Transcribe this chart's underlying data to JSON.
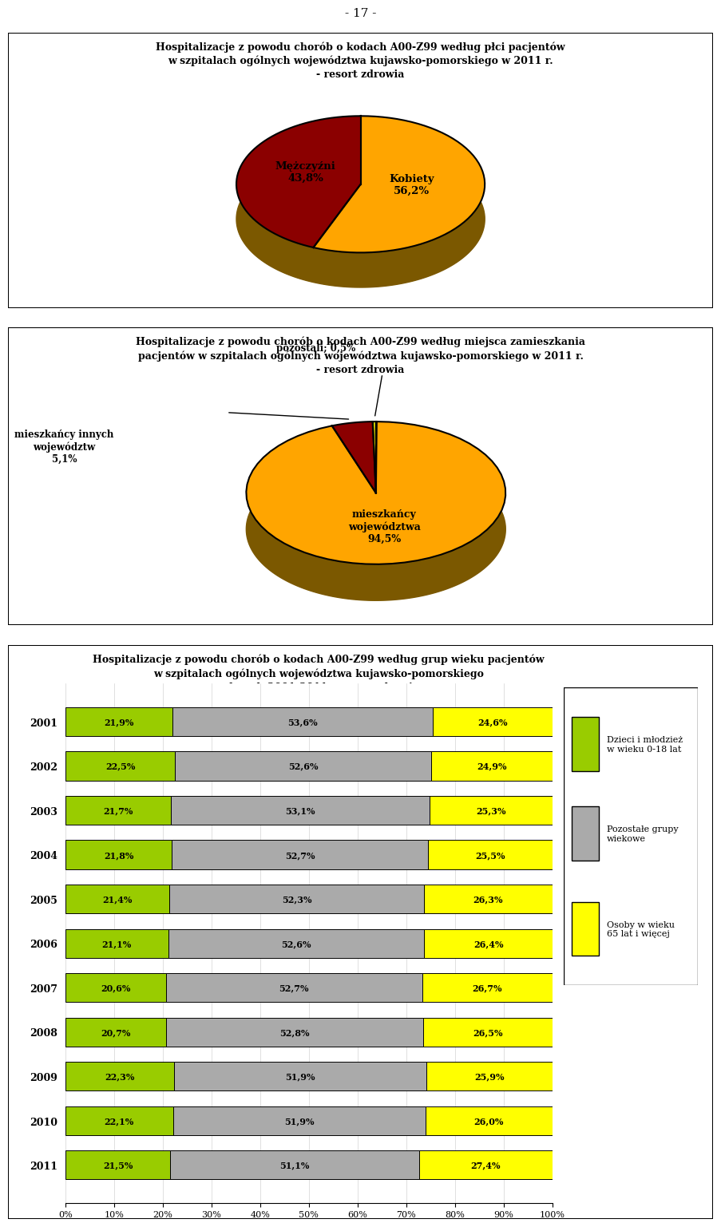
{
  "page_number": "- 17 -",
  "chart1": {
    "title_line1": "Hospitalizacje z powodu chorób o kodach A00-Z99 według płci pacjentów",
    "title_line2": "w szpitalach ogólnych województwa kujawsko-pomorskiego w 2011 r.",
    "title_line3": "- resort zdrowia",
    "slices": [
      56.2,
      43.8
    ],
    "labels": [
      "Kobiety\n56,2%",
      "Mężczyźni\n43,8%"
    ],
    "colors": [
      "#FFA500",
      "#8B0000"
    ],
    "shadow_color": "#7B5800",
    "startangle": 90
  },
  "chart2": {
    "title_line1": "Hospitalizacje z powodu chorób o kodach A00-Z99 według miejsca zamieszkania",
    "title_line2": "pacjentów w szpitalach ogólnych województwa kujawsko-pomorskiego w 2011 r.",
    "title_line3": "- resort zdrowia",
    "slices": [
      94.5,
      5.1,
      0.5
    ],
    "labels": [
      "mieszkańcy\nwojewództwa\n94,5%",
      "mieszkańcy innych\nwojewództw\n5,1%",
      "pozostali; 0,5%"
    ],
    "colors": [
      "#FFA500",
      "#8B0000",
      "#CCCC00"
    ],
    "shadow_color": "#7B5800",
    "startangle": 90
  },
  "chart3": {
    "title_line1": "Hospitalizacje z powodu chorób o kodach A00-Z99 według grup wieku pacjentów",
    "title_line2": "w szpitalach ogólnych województwa kujawsko-pomorskiego",
    "title_line3": "w latach 2001-2011 - resort zdrowia",
    "years": [
      2001,
      2002,
      2003,
      2004,
      2005,
      2006,
      2007,
      2008,
      2009,
      2010,
      2011
    ],
    "green_vals": [
      21.9,
      22.5,
      21.7,
      21.8,
      21.4,
      21.1,
      20.6,
      20.7,
      22.3,
      22.1,
      21.5
    ],
    "gray_vals": [
      53.6,
      52.6,
      53.1,
      52.7,
      52.3,
      52.6,
      52.7,
      52.8,
      51.9,
      51.9,
      51.1
    ],
    "yellow_vals": [
      24.6,
      24.9,
      25.3,
      25.5,
      26.3,
      26.4,
      26.7,
      26.5,
      25.9,
      26.0,
      27.4
    ],
    "green_color": "#99CC00",
    "gray_color": "#AAAAAA",
    "yellow_color": "#FFFF00",
    "legend_labels": [
      "Dzieci i młodzież\nw wieku 0-18 lat",
      "Pozostałe grupy\nwiekowe",
      "Osoby w wieku\n65 lat i więcej"
    ]
  },
  "bg_color": "#FFFFFF"
}
